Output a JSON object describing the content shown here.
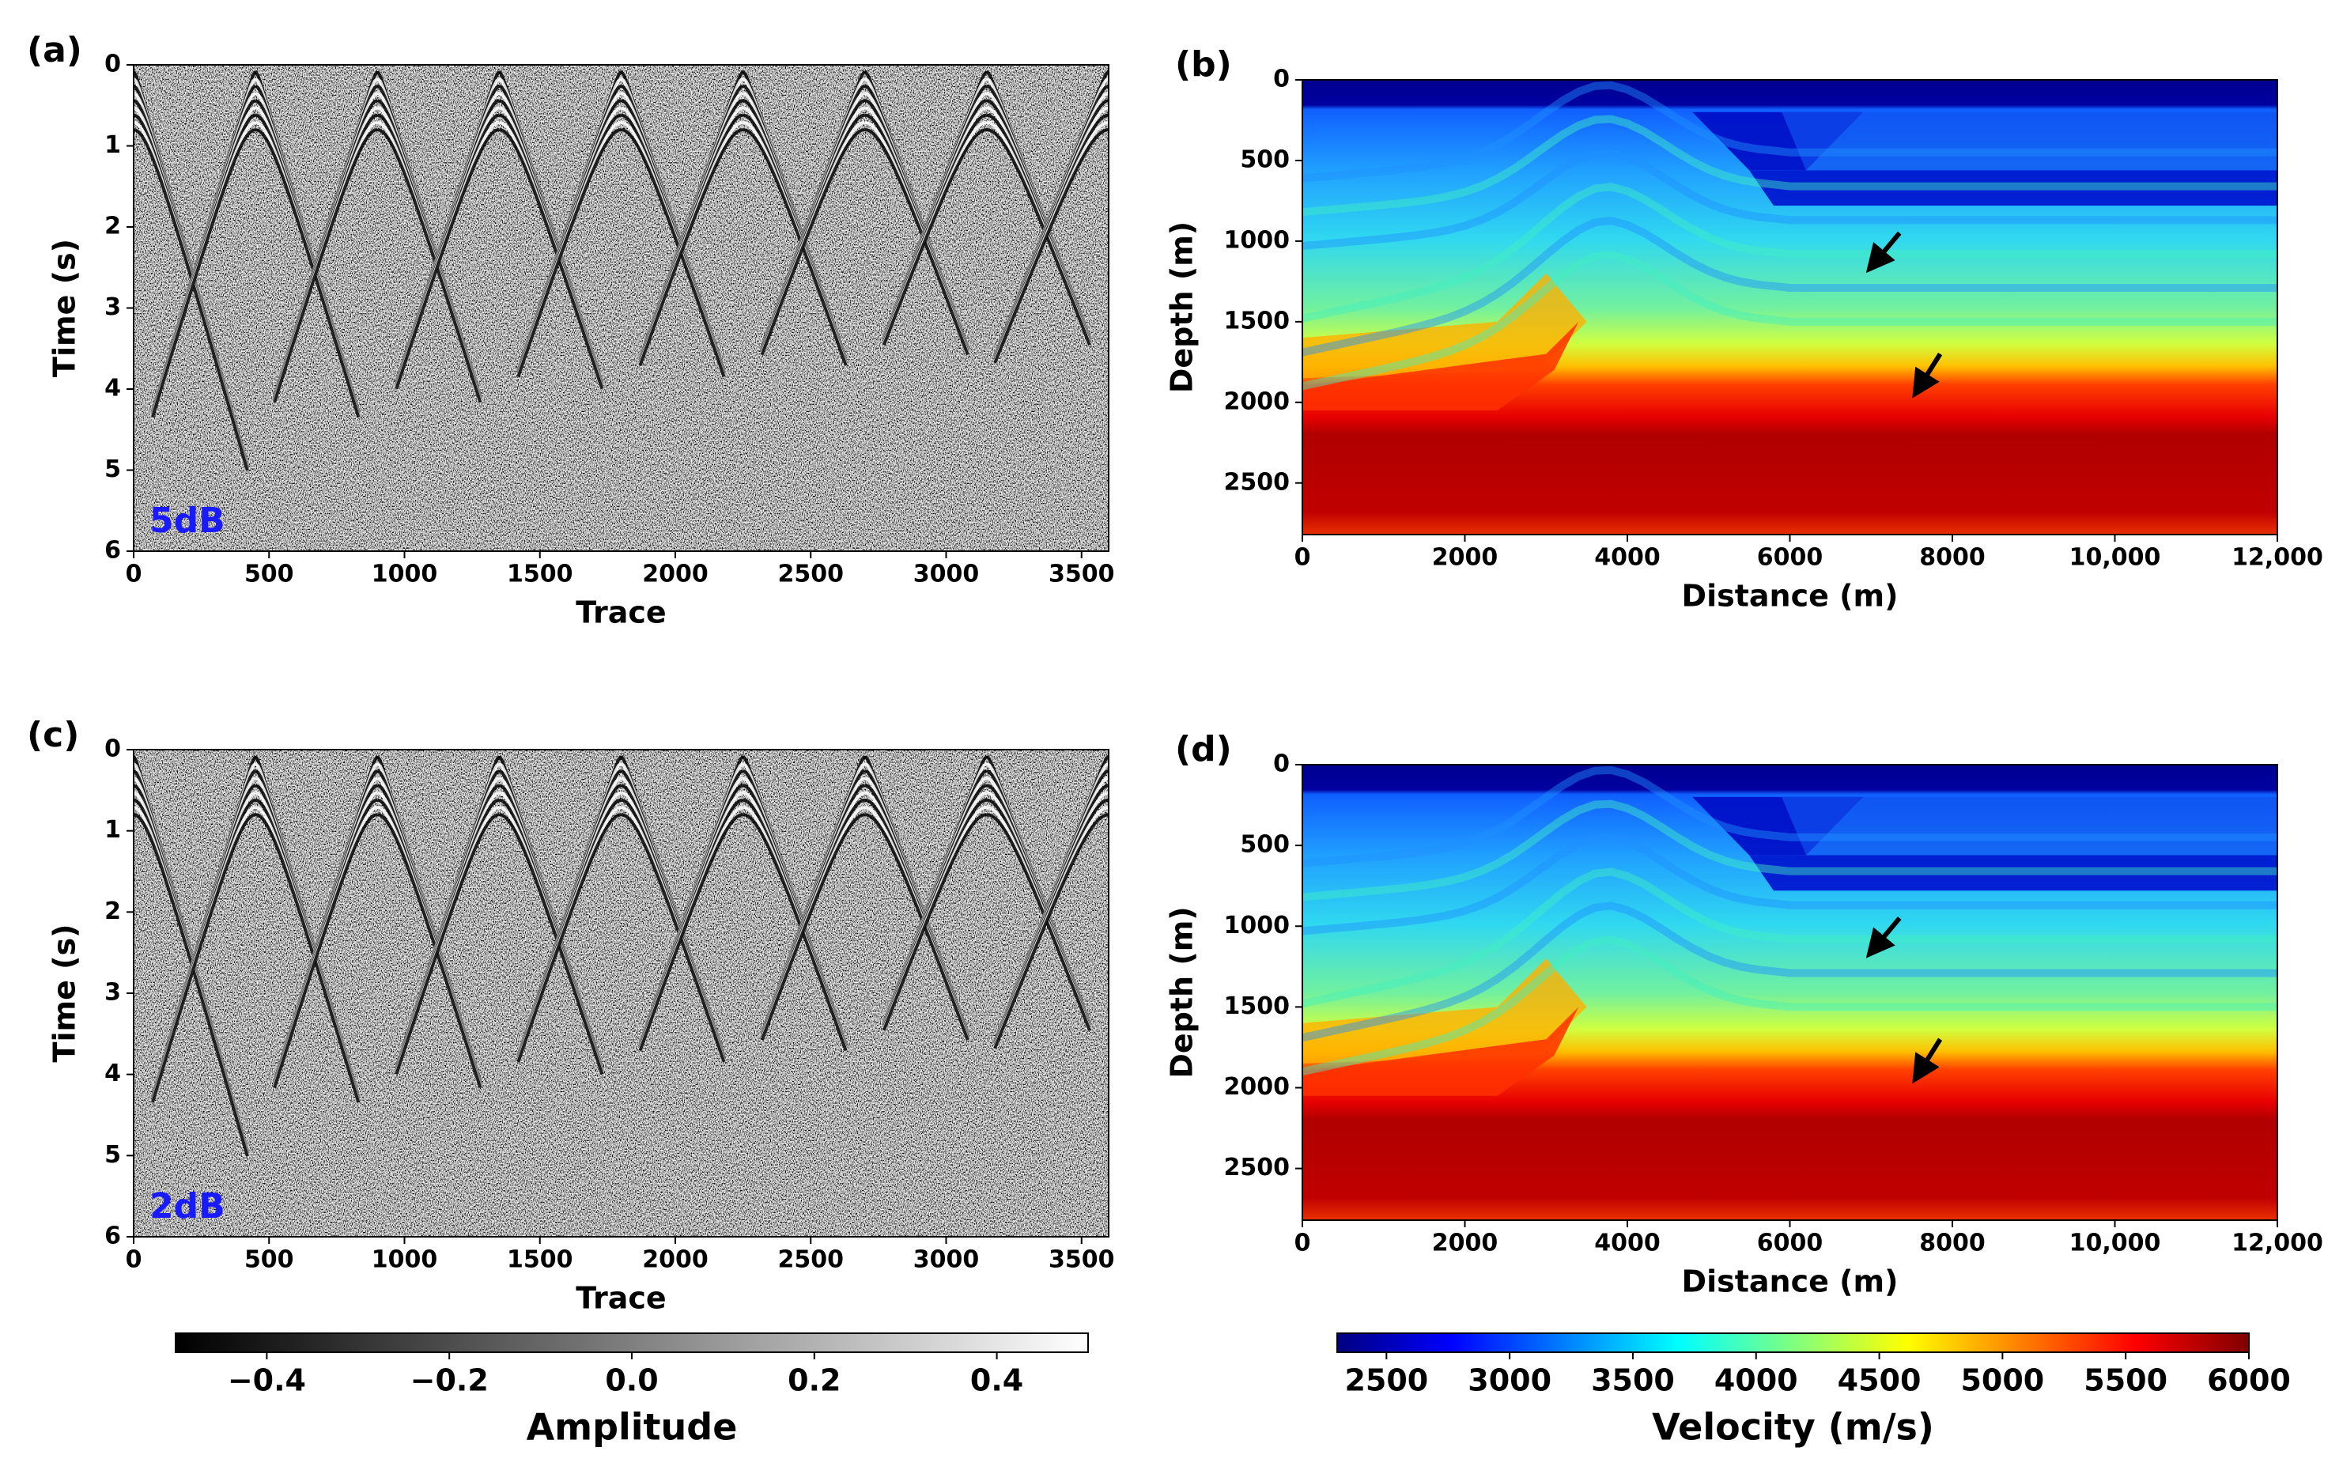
{
  "chart_data": [
    {
      "type": "seismic",
      "panel": "(a)",
      "annotation": "5dB",
      "xlabel": "Trace",
      "ylabel": "Time (s)",
      "xlim": [
        0,
        3600
      ],
      "xticks": [
        0,
        500,
        1000,
        1500,
        2000,
        2500,
        3000,
        3500
      ],
      "ylim": [
        6,
        0
      ],
      "yticks": [
        0,
        1,
        2,
        3,
        4,
        5,
        6
      ],
      "cmap": "gray"
    },
    {
      "type": "velocity",
      "panel": "(b)",
      "xlabel": "Distance (m)",
      "ylabel": "Depth (m)",
      "xlim": [
        0,
        12000
      ],
      "xticks": [
        0,
        2000,
        4000,
        6000,
        8000,
        {
          "value": 10000,
          "label": "10,000"
        },
        {
          "value": 12000,
          "label": "12,000"
        }
      ],
      "ylim": [
        2820,
        0
      ],
      "yticks": [
        0,
        500,
        1000,
        1500,
        2000,
        2500
      ],
      "cmap": "jet"
    },
    {
      "type": "seismic",
      "panel": "(c)",
      "annotation": "2dB",
      "xlabel": "Trace",
      "ylabel": "Time (s)",
      "xlim": [
        0,
        3600
      ],
      "xticks": [
        0,
        500,
        1000,
        1500,
        2000,
        2500,
        3000,
        3500
      ],
      "ylim": [
        6,
        0
      ],
      "yticks": [
        0,
        1,
        2,
        3,
        4,
        5,
        6
      ],
      "cmap": "gray"
    },
    {
      "type": "velocity",
      "panel": "(d)",
      "xlabel": "Distance (m)",
      "ylabel": "Depth (m)",
      "xlim": [
        0,
        12000
      ],
      "xticks": [
        0,
        2000,
        4000,
        6000,
        8000,
        {
          "value": 10000,
          "label": "10,000"
        },
        {
          "value": 12000,
          "label": "12,000"
        }
      ],
      "ylim": [
        2820,
        0
      ],
      "yticks": [
        0,
        500,
        1000,
        1500,
        2000,
        2500
      ],
      "cmap": "jet"
    },
    {
      "type": "colorbar",
      "label": "Amplitude",
      "xlim": [
        -0.5,
        0.5
      ],
      "xticks": [
        {
          "value": -0.4,
          "label": "−0.4"
        },
        {
          "value": -0.2,
          "label": "−0.2"
        },
        {
          "value": 0,
          "label": "0.0"
        },
        0.2,
        0.4
      ],
      "cmap": "gray"
    },
    {
      "type": "colorbar",
      "label": "Velocity (m/s)",
      "xlim": [
        2300,
        6000
      ],
      "xticks": [
        2500,
        3000,
        3500,
        4000,
        4500,
        5000,
        5500,
        6000
      ],
      "cmap": "jet"
    }
  ]
}
